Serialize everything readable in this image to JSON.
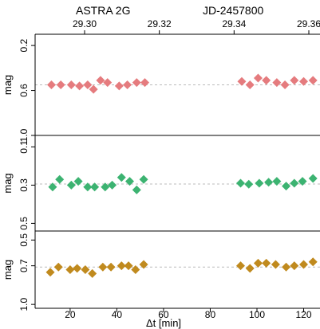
{
  "header": {
    "object_name": "ASTRA 2G",
    "jd_offset_label": "JD-2457800"
  },
  "top_axis": {
    "ticks": [
      29.3,
      29.32,
      29.34,
      29.36
    ],
    "tick_labels": [
      "29.30",
      "29.32",
      "29.34",
      "29.36"
    ]
  },
  "bottom_axis": {
    "label": "Δt [min]",
    "ticks": [
      20,
      40,
      60,
      80,
      100,
      120
    ],
    "tick_labels": [
      "20",
      "40",
      "60",
      "80",
      "100",
      "120"
    ]
  },
  "colors": {
    "panel1": "#e57b7e",
    "panel2": "#3cb371",
    "panel3": "#c08a1e",
    "reference_line": "#bbbbbb"
  },
  "chart_data": [
    {
      "type": "scatter",
      "panel": "top",
      "ylabel": "mag",
      "y_inverted": true,
      "ylim": [
        1.0,
        0.1
      ],
      "yticks": [
        0.2,
        0.6,
        1.0
      ],
      "ytick_labels": [
        "0.2",
        "0.6",
        "1.0"
      ],
      "reference_level": 0.55,
      "marker": "diamond",
      "series": [
        {
          "x": [
            12,
            16,
            20.5,
            24,
            27.5,
            30,
            33,
            36,
            41,
            44.5,
            48.5,
            52,
            93.5,
            97,
            100.5,
            104,
            108.5,
            112,
            116,
            120,
            124
          ],
          "y": [
            0.55,
            0.55,
            0.55,
            0.56,
            0.55,
            0.59,
            0.51,
            0.53,
            0.56,
            0.55,
            0.53,
            0.53,
            0.52,
            0.55,
            0.49,
            0.51,
            0.53,
            0.55,
            0.51,
            0.52,
            0.51
          ]
        }
      ]
    },
    {
      "type": "scatter",
      "panel": "middle",
      "ylabel": "mag",
      "y_inverted": true,
      "ylim": [
        0.54,
        0.04
      ],
      "yticks": [
        0.1,
        0.3,
        0.5
      ],
      "ytick_labels": [
        "0.1",
        "0.3",
        "0.5"
      ],
      "reference_level": 0.294,
      "marker": "diamond",
      "series": [
        {
          "x": [
            12.5,
            15.5,
            20.5,
            23.5,
            27.5,
            30.5,
            35,
            38,
            42,
            45.5,
            48.5,
            51.5,
            93,
            96.5,
            101,
            105,
            108.5,
            112.5,
            116,
            119.5,
            124
          ],
          "y": [
            0.31,
            0.27,
            0.3,
            0.28,
            0.31,
            0.31,
            0.31,
            0.3,
            0.26,
            0.28,
            0.325,
            0.27,
            0.29,
            0.295,
            0.29,
            0.285,
            0.28,
            0.305,
            0.29,
            0.28,
            0.265
          ]
        }
      ]
    },
    {
      "type": "scatter",
      "panel": "bottom",
      "ylabel": "mag",
      "y_inverted": true,
      "ylim": [
        1.03,
        0.43
      ],
      "yticks": [
        0.5,
        0.7,
        1.0
      ],
      "ytick_labels": [
        "0.5",
        "0.7",
        "1.0"
      ],
      "reference_level": 0.71,
      "marker": "diamond",
      "series": [
        {
          "x": [
            11.5,
            15,
            20,
            23,
            26.5,
            29.5,
            34,
            37.5,
            42,
            45,
            48,
            51.5,
            93,
            97,
            100.5,
            104,
            108,
            112.5,
            116,
            120,
            124
          ],
          "y": [
            0.75,
            0.71,
            0.73,
            0.72,
            0.73,
            0.76,
            0.71,
            0.71,
            0.7,
            0.7,
            0.73,
            0.69,
            0.7,
            0.72,
            0.68,
            0.68,
            0.69,
            0.71,
            0.7,
            0.69,
            0.67
          ]
        }
      ]
    }
  ]
}
